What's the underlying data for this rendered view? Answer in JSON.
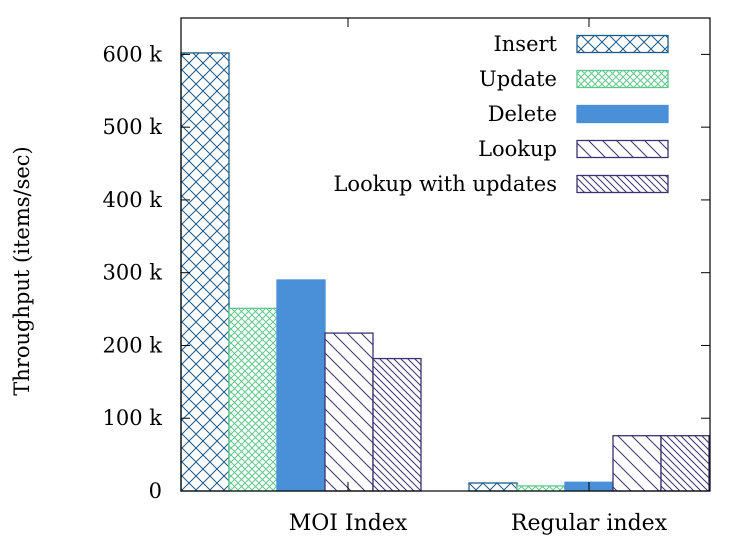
{
  "chart_data": {
    "type": "bar",
    "ylabel": "Throughput (items/sec)",
    "xlabel": "",
    "ylim": [
      0,
      650000
    ],
    "yticks": [
      {
        "value": 0,
        "label": "0"
      },
      {
        "value": 100000,
        "label": "100 k"
      },
      {
        "value": 200000,
        "label": "200 k"
      },
      {
        "value": 300000,
        "label": "300 k"
      },
      {
        "value": 400000,
        "label": "400 k"
      },
      {
        "value": 500000,
        "label": "500 k"
      },
      {
        "value": 600000,
        "label": "600 k"
      }
    ],
    "categories": [
      "MOI Index",
      "Regular index"
    ],
    "legend_position": "top-right",
    "grid": false,
    "series": [
      {
        "name": "Insert",
        "values": [
          602000,
          11000
        ],
        "color": "#1d5a8a",
        "pattern": "crosshatch"
      },
      {
        "name": "Update",
        "values": [
          251000,
          7000
        ],
        "color": "#5fc88c",
        "pattern": "fine-crosshatch"
      },
      {
        "name": "Delete",
        "values": [
          290000,
          12000
        ],
        "color": "#4a90d9",
        "pattern": "solid"
      },
      {
        "name": "Lookup",
        "values": [
          217000,
          76000
        ],
        "color": "#3b3370",
        "pattern": "diagonal"
      },
      {
        "name": "Lookup with updates",
        "values": [
          182000,
          76000
        ],
        "color": "#3b3370",
        "pattern": "dense-diagonal"
      }
    ]
  }
}
